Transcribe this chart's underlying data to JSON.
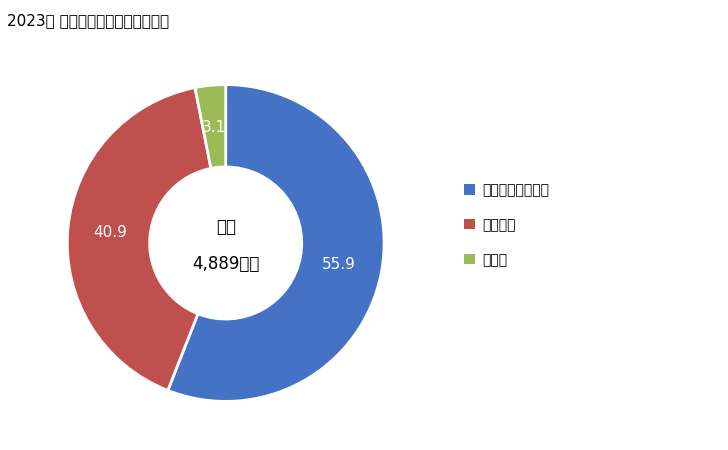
{
  "title": "2023年 輸入相手国のシェア（％）",
  "labels": [
    "アラブ首長国連邦",
    "フランス",
    "ドイツ"
  ],
  "values": [
    55.9,
    40.9,
    3.1
  ],
  "colors": [
    "#4472C4",
    "#C0504D",
    "#9BBB59"
  ],
  "center_text_line1": "総額",
  "center_text_line2": "4,889万円",
  "background_color": "#FFFFFF",
  "wedge_labels": [
    "55.9",
    "40.9",
    "3.1"
  ],
  "label_text_colors": [
    "white",
    "white",
    "white"
  ]
}
